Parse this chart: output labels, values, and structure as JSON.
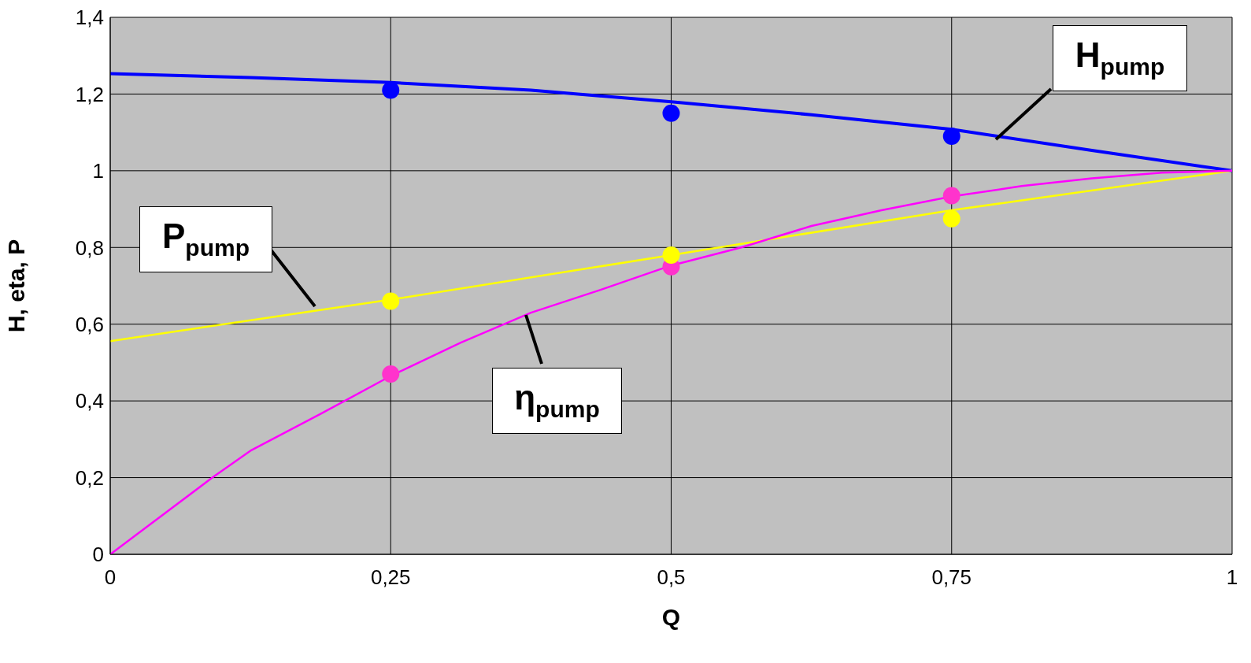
{
  "chart_data": {
    "type": "line",
    "xlabel": "Q",
    "ylabel": "H, eta, P",
    "xlim": [
      0,
      1
    ],
    "xticks": [
      0,
      {
        "value": 0.25,
        "label": "0,25"
      },
      {
        "value": 0.5,
        "label": "0,5"
      },
      {
        "value": 0.75,
        "label": "0,75"
      },
      1
    ],
    "ylim": [
      0,
      1.4
    ],
    "yticks": [
      0,
      {
        "value": 0.2,
        "label": "0,2"
      },
      {
        "value": 0.4,
        "label": "0,4"
      },
      {
        "value": 0.6,
        "label": "0,6"
      },
      {
        "value": 0.8,
        "label": "0,8"
      },
      1,
      {
        "value": 1.2,
        "label": "1,2"
      },
      {
        "value": 1.4,
        "label": "1,4"
      }
    ],
    "grid": true,
    "series": [
      {
        "name": "H$_{pump}$",
        "marker": "none",
        "color": "#0000ff",
        "x": [
          0,
          0.125,
          0.25,
          0.375,
          0.5,
          0.625,
          0.75,
          0.875,
          1
        ],
        "values": [
          1.253,
          1.243,
          1.23,
          1.21,
          1.18,
          1.146,
          1.108,
          1.053,
          1.0
        ]
      },
      {
        "name": "P$_{pump}$",
        "marker": "none",
        "color": "#ffff00",
        "x": [
          0,
          0.25,
          0.5,
          0.75,
          1
        ],
        "values": [
          0.556,
          0.664,
          0.78,
          0.897,
          1.0
        ]
      },
      {
        "name": "η$_{pump}$",
        "marker": "none",
        "color": "#ff00ff",
        "x": [
          0,
          0.091,
          0.125,
          0.1875,
          0.25,
          0.3125,
          0.375,
          0.4375,
          0.5,
          0.5625,
          0.625,
          0.6875,
          0.75,
          0.8125,
          0.875,
          0.9375,
          1
        ],
        "values": [
          0,
          0.2,
          0.27,
          0.366,
          0.465,
          0.552,
          0.63,
          0.69,
          0.753,
          0.8,
          0.856,
          0.897,
          0.933,
          0.96,
          0.98,
          0.995,
          1.0
        ]
      },
      {
        "type": "scatter",
        "marker": "circle",
        "color": "#0000ff",
        "x": [
          0.25,
          0.5,
          0.75
        ],
        "values": [
          1.21,
          1.15,
          1.09
        ]
      },
      {
        "type": "scatter",
        "marker": "circle",
        "color": "#ff33cc",
        "x": [
          0.25,
          0.5,
          0.75
        ],
        "values": [
          0.47,
          0.75,
          0.935
        ]
      },
      {
        "type": "scatter",
        "marker": "circle",
        "color": "#ffff00",
        "x": [
          0.25,
          0.5,
          0.75
        ],
        "values": [
          0.66,
          0.78,
          0.875
        ]
      }
    ]
  }
}
